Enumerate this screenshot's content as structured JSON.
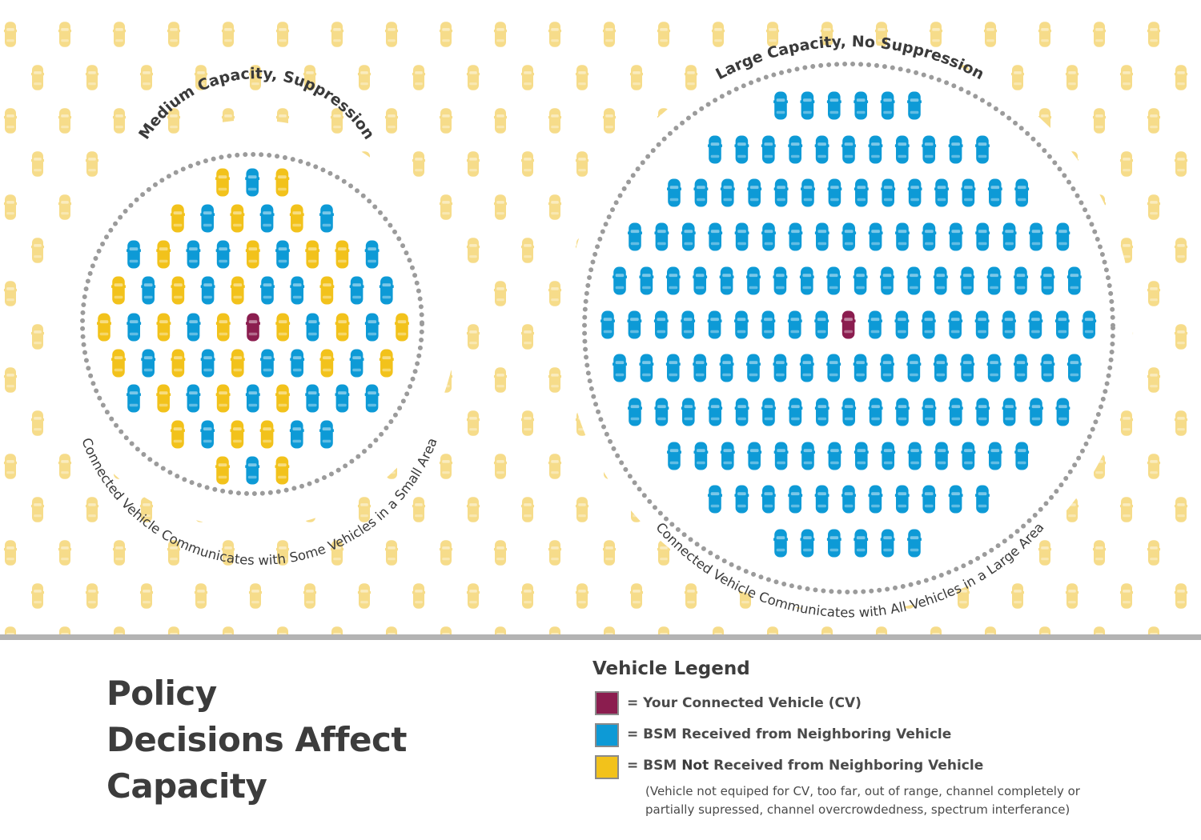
{
  "diagram": {
    "left_panel": {
      "title": "Medium Capacity,  Suppression",
      "caption": "Connected Vehicle Communicates with Some Vehicles in a Small Area"
    },
    "right_panel": {
      "title": "Large Capacity, No Suppression",
      "caption": "Connected Vehicle Communicates with All Vehicles in a Large Area"
    }
  },
  "footer": {
    "title_lines": [
      "Policy",
      "Decisions Affect",
      "Capacity"
    ]
  },
  "legend": {
    "title": "Vehicle Legend",
    "items": [
      {
        "color": "#8b1d4f",
        "prefix": "= Your Connected Vehicle (CV)",
        "bold": "",
        "suffix": ""
      },
      {
        "color": "#0d9ad6",
        "prefix": "= BSM Received from Neighboring Vehicle",
        "bold": "",
        "suffix": ""
      },
      {
        "color": "#f2c21b",
        "prefix": "= BSM ",
        "bold": "Not",
        "suffix": " Received from Neighboring Vehicle"
      }
    ],
    "note_line1": "(Vehicle not equiped for CV, too far, out of range, channel completely or",
    "note_line2": "partially supressed, channel overcrowdedness, spectrum interferance)"
  },
  "colors": {
    "cv": "#8b1d4f",
    "received": "#0d9ad6",
    "not_received": "#f2c21b",
    "background_car": "#f6dc8a",
    "dots": "#9b9b9b",
    "divider": "#b3b3b3"
  }
}
